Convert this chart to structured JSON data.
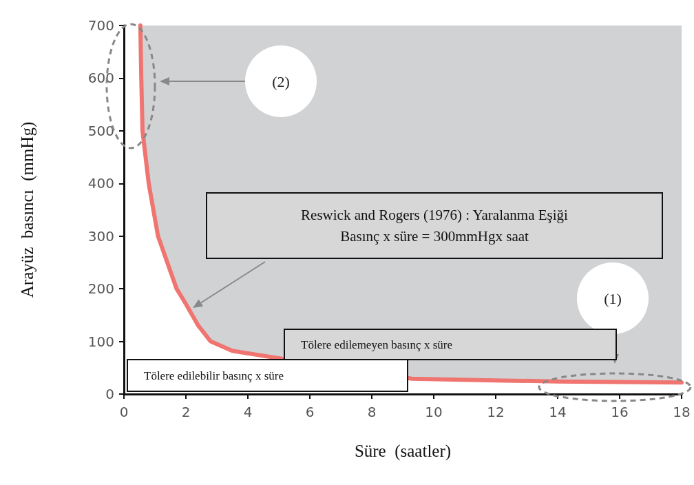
{
  "chart_data": {
    "type": "line",
    "xlabel": "Süre  (saatler)",
    "ylabel": "Arayüz  basıncı  (mmHg)",
    "x": [
      0.53,
      0.56,
      0.6,
      0.8,
      1.1,
      1.7,
      2,
      2.4,
      2.8,
      3.5,
      5.1,
      9.3,
      12,
      14,
      18
    ],
    "series": [
      {
        "color": "#f07470",
        "values": [
          700,
          600,
          500,
          400,
          300,
          200,
          171,
          130,
          100,
          82,
          67,
          29,
          26,
          24,
          22
        ]
      }
    ],
    "xlim": [
      0,
      18
    ],
    "xticks": [
      0,
      2,
      4,
      6,
      8,
      10,
      12,
      14,
      16,
      18
    ],
    "ylim": [
      0,
      700
    ],
    "yticks": [
      0,
      100,
      200,
      300,
      400,
      500,
      600,
      700
    ],
    "grid": false,
    "marker": "none",
    "line_style": "solid",
    "annotations": [
      "Reswick and Rogers (1976) : Yaralanma Eşiği\nBasınç x süre = 300mmHgx saat",
      "(2)",
      "(1)",
      "Tölere edilemeyen basınç x süre",
      "Tölere edilebilir basınç x süre"
    ]
  }
}
